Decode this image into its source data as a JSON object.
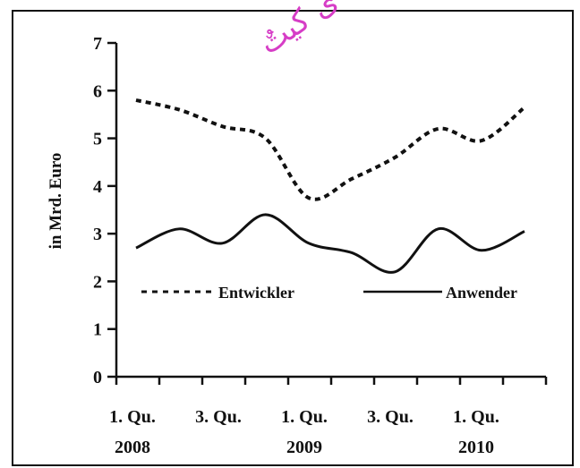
{
  "watermark": "ى كيتٌ",
  "chart_data": {
    "type": "line",
    "title": "",
    "xlabel": "",
    "ylabel": "in Mrd. Euro",
    "ylim": [
      0,
      7
    ],
    "yticks": [
      "0",
      "1",
      "2",
      "3",
      "4",
      "5",
      "6",
      "7"
    ],
    "x": [
      "Q1 2008",
      "Q2 2008",
      "Q3 2008",
      "Q4 2008",
      "Q1 2009",
      "Q2 2009",
      "Q3 2009",
      "Q4 2009",
      "Q1 2010",
      "Q2 2010"
    ],
    "x_tick_labels": [
      {
        "quarter": "1. Qu.",
        "year": "2008"
      },
      {
        "quarter": "3. Qu.",
        "year": ""
      },
      {
        "quarter": "1. Qu.",
        "year": "2009"
      },
      {
        "quarter": "3. Qu.",
        "year": ""
      },
      {
        "quarter": "1. Qu.",
        "year": "2010"
      }
    ],
    "series": [
      {
        "name": "Entwickler",
        "style": "dashed",
        "values": [
          5.8,
          5.6,
          5.25,
          5.0,
          3.75,
          4.15,
          4.6,
          5.2,
          4.95,
          5.65
        ]
      },
      {
        "name": "Anwender",
        "style": "solid",
        "values": [
          2.7,
          3.1,
          2.8,
          3.4,
          2.8,
          2.6,
          2.2,
          3.1,
          2.65,
          3.05
        ]
      }
    ],
    "legend": "inside-lower-middle",
    "grid": false,
    "colors": {
      "line": "#111111",
      "frame": "#111111"
    }
  }
}
